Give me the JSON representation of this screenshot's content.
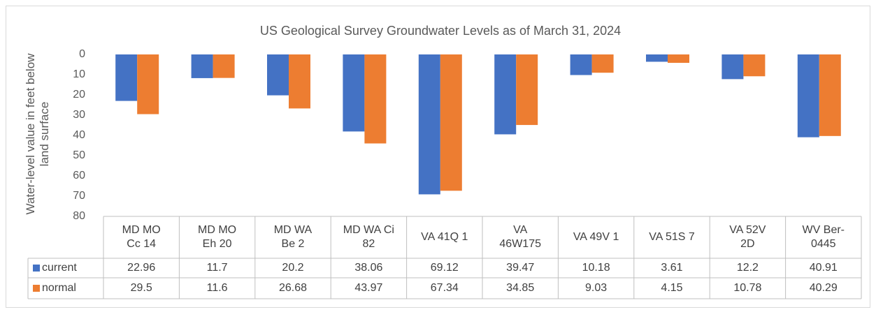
{
  "chart_data": {
    "type": "bar",
    "title": "US Geological Survey Groundwater Levels as of March 31, 2024",
    "ylabel": "Water-level value in feet below land surface",
    "categories": [
      "MD MO Cc 14",
      "MD MO Eh 20",
      "MD WA Be 2",
      "MD WA Ci 82",
      "VA 41Q 1",
      "VA 46W175",
      "VA 49V 1",
      "VA 51S 7",
      "VA 52V 2D",
      "WV Ber-0445"
    ],
    "series": [
      {
        "name": "current",
        "color": "#4472c4",
        "values": [
          22.96,
          11.7,
          20.2,
          38.06,
          69.12,
          39.47,
          10.18,
          3.61,
          12.2,
          40.91
        ]
      },
      {
        "name": "normal",
        "color": "#ed7d31",
        "values": [
          29.5,
          11.6,
          26.68,
          43.97,
          67.34,
          34.85,
          9.03,
          4.15,
          10.78,
          40.29
        ]
      }
    ],
    "ylim": [
      0,
      80
    ],
    "yticks": [
      0,
      10,
      20,
      30,
      40,
      50,
      60,
      70,
      80
    ],
    "y_inverted": true,
    "data_table": true
  }
}
